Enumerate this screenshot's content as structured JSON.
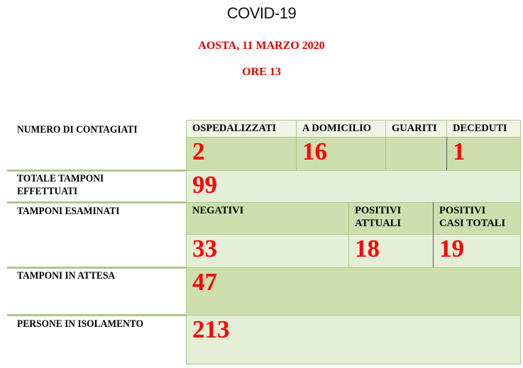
{
  "header": {
    "title": "COVID-19",
    "location_date": "AOSTA, 11 MARZO 2020",
    "time": "ORE 13"
  },
  "contagiati": {
    "label": "NUMERO DI CONTAGIATI",
    "columns": [
      {
        "label": "OSPEDALIZZATI",
        "value": "2"
      },
      {
        "label": "A DOMICILIO",
        "value": "16"
      },
      {
        "label": "GUARITI",
        "value": ""
      },
      {
        "label": "DECEDUTI",
        "value": "1"
      }
    ]
  },
  "tamponi_effettuati": {
    "label_line1": "TOTALE TAMPONI",
    "label_line2": "EFFETTUATI",
    "value": "99"
  },
  "tamponi_esaminati": {
    "label": "TAMPONI ESAMINATI",
    "columns": [
      {
        "label_line1": "NEGATIVI",
        "label_line2": "",
        "value": "33"
      },
      {
        "label_line1": "POSITIVI",
        "label_line2": "ATTUALI",
        "value": "18"
      },
      {
        "label_line1": "POSITIVI",
        "label_line2": "CASI TOTALI",
        "value": "19"
      }
    ]
  },
  "tamponi_attesa": {
    "label": "TAMPONI IN ATTESA",
    "value": "47"
  },
  "isolamento": {
    "label": "PERSONE IN ISOLAMENTO",
    "value": "213"
  },
  "colors": {
    "value_red": "#ff0000",
    "header_red": "#e00000",
    "green_dark": "#cddfae",
    "green_light": "#e5eed6",
    "border": "#aec887"
  }
}
